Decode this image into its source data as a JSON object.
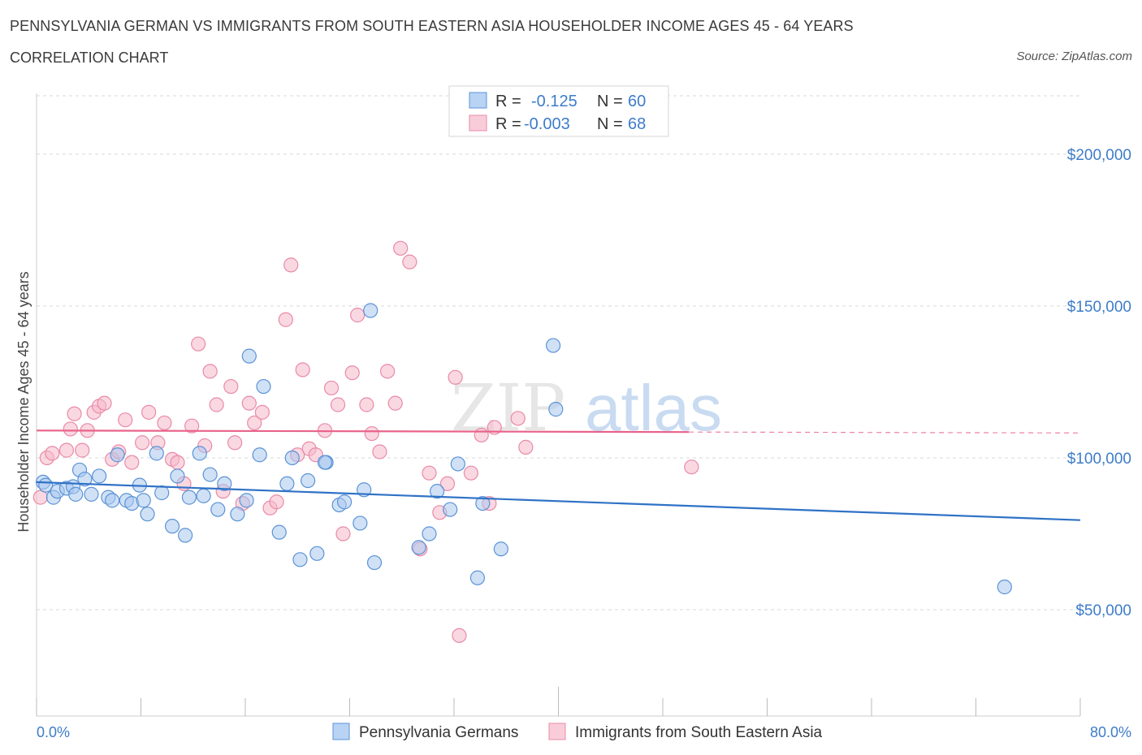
{
  "header": {
    "title": "PENNSYLVANIA GERMAN VS IMMIGRANTS FROM SOUTH EASTERN ASIA HOUSEHOLDER INCOME AGES 45 - 64 YEARS",
    "subtitle": "CORRELATION CHART",
    "source": "Source: ZipAtlas.com"
  },
  "colors": {
    "blue_fill": "#a9c9ef",
    "blue_stroke": "#5b93d6",
    "blue_line": "#2f72c6",
    "pink_fill": "#f5b8cb",
    "pink_stroke": "#e98aa7",
    "pink_line": "#e8628a",
    "axis_text": "#3d7cc9",
    "grid": "#d9d9d9"
  },
  "legend_top": {
    "rows": [
      {
        "r_label": "R =",
        "r_value": "-0.125",
        "n_label": "N =",
        "n_value": "60"
      },
      {
        "r_label": "R =",
        "r_value": "-0.003",
        "n_label": "N =",
        "n_value": "68"
      }
    ]
  },
  "watermark": {
    "zip": "ZIP",
    "atlas": "atlas"
  },
  "chart_data": {
    "type": "scatter",
    "title": "PENNSYLVANIA GERMAN VS IMMIGRANTS FROM SOUTH EASTERN ASIA HOUSEHOLDER INCOME AGES 45 - 64 YEARS",
    "ylabel": "Householder Income Ages 45 - 64 years",
    "xlabel": "",
    "xlim": [
      0,
      80
    ],
    "ylim": [
      15000,
      220000
    ],
    "x_tick_labels": [
      "0.0%",
      "80.0%"
    ],
    "y_ticks": [
      {
        "value": 200000,
        "label": "$200,000"
      },
      {
        "value": 150000,
        "label": "$150,000"
      },
      {
        "value": 100000,
        "label": "$100,000"
      },
      {
        "value": 50000,
        "label": "$50,000"
      }
    ],
    "legend_placement": "bottom-center",
    "grid": true,
    "series": [
      {
        "name": "Pennsylvania Germans",
        "color": "blue",
        "trend": {
          "x0": 0,
          "y0": 92000,
          "x1": 80,
          "y1": 79500
        },
        "points": [
          [
            0.5,
            92000
          ],
          [
            0.7,
            91000
          ],
          [
            1.3,
            87000
          ],
          [
            1.6,
            89000
          ],
          [
            2.3,
            90000
          ],
          [
            2.8,
            90500
          ],
          [
            3.3,
            96000
          ],
          [
            3.7,
            93000
          ],
          [
            4.2,
            88000
          ],
          [
            4.8,
            94000
          ],
          [
            5.5,
            87000
          ],
          [
            5.8,
            86000
          ],
          [
            6.2,
            101000
          ],
          [
            6.9,
            86000
          ],
          [
            7.3,
            85000
          ],
          [
            7.9,
            91000
          ],
          [
            8.2,
            86000
          ],
          [
            8.5,
            81500
          ],
          [
            9.2,
            101500
          ],
          [
            9.6,
            88500
          ],
          [
            10.4,
            77500
          ],
          [
            10.8,
            94000
          ],
          [
            11.4,
            74500
          ],
          [
            11.7,
            87000
          ],
          [
            12.5,
            101500
          ],
          [
            12.8,
            87500
          ],
          [
            13.3,
            94500
          ],
          [
            13.9,
            83000
          ],
          [
            14.4,
            91500
          ],
          [
            15.4,
            81500
          ],
          [
            16.1,
            86000
          ],
          [
            16.3,
            133500
          ],
          [
            17.1,
            101000
          ],
          [
            17.4,
            123500
          ],
          [
            18.6,
            75500
          ],
          [
            19.2,
            91500
          ],
          [
            19.6,
            100000
          ],
          [
            20.2,
            66500
          ],
          [
            20.8,
            92500
          ],
          [
            21.5,
            68500
          ],
          [
            22.2,
            98500
          ],
          [
            23.2,
            84500
          ],
          [
            23.6,
            85500
          ],
          [
            24.8,
            78500
          ],
          [
            25.1,
            89500
          ],
          [
            25.6,
            148500
          ],
          [
            25.9,
            65500
          ],
          [
            29.3,
            70500
          ],
          [
            30.1,
            75000
          ],
          [
            30.7,
            89000
          ],
          [
            31.7,
            83000
          ],
          [
            32.3,
            98000
          ],
          [
            33.8,
            60500
          ],
          [
            34.2,
            85000
          ],
          [
            35.6,
            70000
          ],
          [
            39.8,
            116000
          ],
          [
            39.6,
            137000
          ],
          [
            74.2,
            57500
          ],
          [
            3.0,
            88000
          ],
          [
            22.1,
            98500
          ]
        ]
      },
      {
        "name": "Immigrants from South Eastern Asia",
        "color": "pink",
        "trend": {
          "x0": 0,
          "y0": 109000,
          "x1": 50,
          "y1": 108500,
          "dashed_to_x": 80
        },
        "points": [
          [
            0.3,
            87000
          ],
          [
            0.8,
            100000
          ],
          [
            1.2,
            101500
          ],
          [
            2.3,
            102500
          ],
          [
            2.6,
            109500
          ],
          [
            2.9,
            114500
          ],
          [
            3.5,
            102500
          ],
          [
            3.9,
            109000
          ],
          [
            4.4,
            115000
          ],
          [
            4.8,
            117000
          ],
          [
            5.2,
            118000
          ],
          [
            5.8,
            99500
          ],
          [
            6.3,
            102000
          ],
          [
            6.8,
            112500
          ],
          [
            7.3,
            98500
          ],
          [
            8.1,
            105000
          ],
          [
            8.6,
            115000
          ],
          [
            9.3,
            105000
          ],
          [
            9.8,
            111500
          ],
          [
            10.4,
            99500
          ],
          [
            10.8,
            98500
          ],
          [
            11.3,
            91500
          ],
          [
            11.9,
            110500
          ],
          [
            12.4,
            137500
          ],
          [
            12.9,
            104000
          ],
          [
            13.3,
            128500
          ],
          [
            13.8,
            117500
          ],
          [
            14.3,
            89000
          ],
          [
            14.9,
            123500
          ],
          [
            15.2,
            105000
          ],
          [
            15.8,
            85000
          ],
          [
            16.3,
            118000
          ],
          [
            16.7,
            111500
          ],
          [
            17.3,
            115000
          ],
          [
            17.9,
            83500
          ],
          [
            18.4,
            85500
          ],
          [
            19.1,
            145500
          ],
          [
            19.5,
            163500
          ],
          [
            20.0,
            101000
          ],
          [
            20.4,
            129000
          ],
          [
            20.9,
            103000
          ],
          [
            21.4,
            101000
          ],
          [
            22.1,
            109000
          ],
          [
            22.6,
            123000
          ],
          [
            23.1,
            117500
          ],
          [
            23.5,
            75000
          ],
          [
            24.2,
            128000
          ],
          [
            24.6,
            147000
          ],
          [
            25.3,
            117500
          ],
          [
            25.7,
            108000
          ],
          [
            26.3,
            102000
          ],
          [
            26.9,
            128500
          ],
          [
            27.5,
            118000
          ],
          [
            27.9,
            169000
          ],
          [
            28.6,
            164500
          ],
          [
            29.4,
            70000
          ],
          [
            30.1,
            95000
          ],
          [
            30.9,
            82000
          ],
          [
            31.5,
            91500
          ],
          [
            32.1,
            126500
          ],
          [
            32.4,
            41500
          ],
          [
            33.3,
            95000
          ],
          [
            34.1,
            107500
          ],
          [
            34.7,
            85000
          ],
          [
            35.1,
            110000
          ],
          [
            36.9,
            113000
          ],
          [
            37.5,
            103500
          ],
          [
            50.2,
            97000
          ]
        ]
      }
    ]
  },
  "legend_bottom": {
    "items": [
      "Pennsylvania Germans",
      "Immigrants from South Eastern Asia"
    ]
  }
}
